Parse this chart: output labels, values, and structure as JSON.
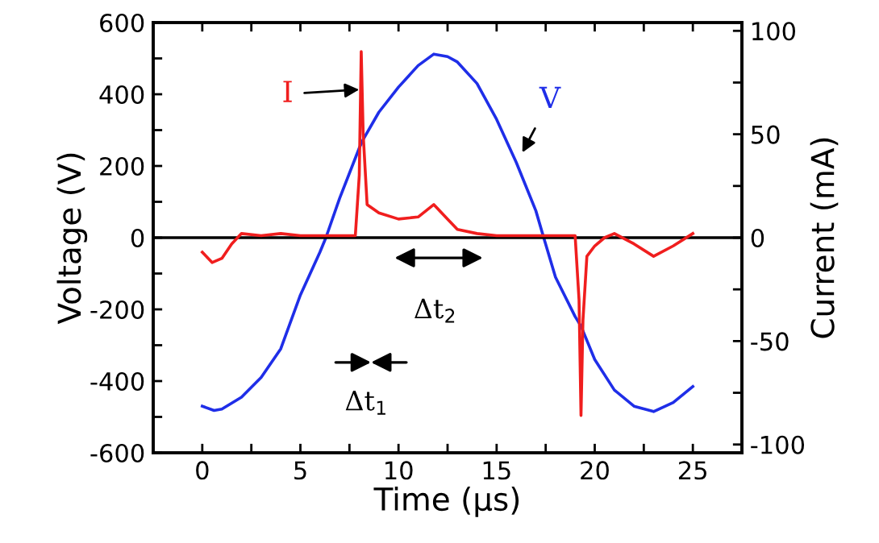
{
  "chart_data": {
    "type": "line",
    "xlabel": "Time (µs)",
    "ylabel": "Voltage (V)",
    "y2label": "Current (mA)",
    "xlim": [
      -2.5,
      27.5
    ],
    "xticks": [
      0,
      {
        "value": 2.5,
        "label": null
      },
      5,
      {
        "value": 7.5,
        "label": null
      },
      10,
      {
        "value": 12.5,
        "label": null
      },
      15,
      {
        "value": 17.5,
        "label": null
      },
      20,
      {
        "value": 22.5,
        "label": null
      },
      25
    ],
    "ylim": [
      -600,
      600
    ],
    "yticks": [
      -600,
      {
        "value": -500,
        "label": null
      },
      -400,
      {
        "value": -300,
        "label": null
      },
      -200,
      {
        "value": -100,
        "label": null
      },
      0,
      {
        "value": 100,
        "label": null
      },
      200,
      {
        "value": 300,
        "label": null
      },
      400,
      {
        "value": 500,
        "label": null
      },
      600
    ],
    "y2lim": [
      -104,
      104
    ],
    "y2ticks": [
      -100,
      {
        "value": -75,
        "label": null
      },
      -50,
      {
        "value": -25,
        "label": null
      },
      0,
      {
        "value": 25,
        "label": null
      },
      50,
      {
        "value": 75,
        "label": null
      },
      100
    ],
    "series": [
      {
        "color": "#1f2ee8",
        "x": [
          0,
          0.6,
          1,
          2,
          3,
          4,
          5,
          6,
          6.3,
          7,
          8,
          8.2,
          9,
          10,
          11,
          11.8,
          12.5,
          13,
          14,
          15,
          16,
          17,
          17.4,
          18,
          19,
          19.3,
          20,
          21,
          22,
          23,
          24,
          25
        ],
        "values": [
          -470,
          -482,
          -478,
          -445,
          -390,
          -310,
          -160,
          -40,
          0,
          110,
          250,
          274,
          350,
          420,
          480,
          512,
          505,
          490,
          430,
          330,
          210,
          75,
          0,
          -110,
          -220,
          -247,
          -340,
          -425,
          -470,
          -485,
          -460,
          -415
        ]
      },
      {
        "color": "#f01e1e",
        "axis": "y2",
        "x": [
          0,
          0.5,
          1,
          1.5,
          2,
          3,
          4,
          5,
          6,
          7,
          7.8,
          8.0,
          8.1,
          8.2,
          8.4,
          9,
          10,
          11,
          11.8,
          12.5,
          13,
          14,
          15,
          16,
          17,
          18,
          19,
          19.2,
          19.3,
          19.4,
          19.6,
          20,
          20.5,
          21,
          22,
          23,
          24,
          25
        ],
        "values": [
          -7,
          -12,
          -10,
          -3,
          2,
          1,
          2,
          1,
          1,
          1,
          1,
          30,
          90,
          50,
          16,
          12,
          9,
          10,
          16,
          9,
          4,
          2,
          1,
          1,
          1,
          1,
          1,
          -30,
          -86,
          -40,
          -9,
          -4,
          0,
          2,
          -3,
          -9,
          -4,
          2
        ]
      }
    ],
    "ref_lines": [
      {
        "axis": "y",
        "value": 0,
        "color": "#000000"
      }
    ],
    "annotations": [
      {
        "text": "I",
        "x": 8.0,
        "y": 413
      },
      "V",
      "Δt$_{2}$",
      "Δt$_{1}$"
    ],
    "grid": false
  }
}
